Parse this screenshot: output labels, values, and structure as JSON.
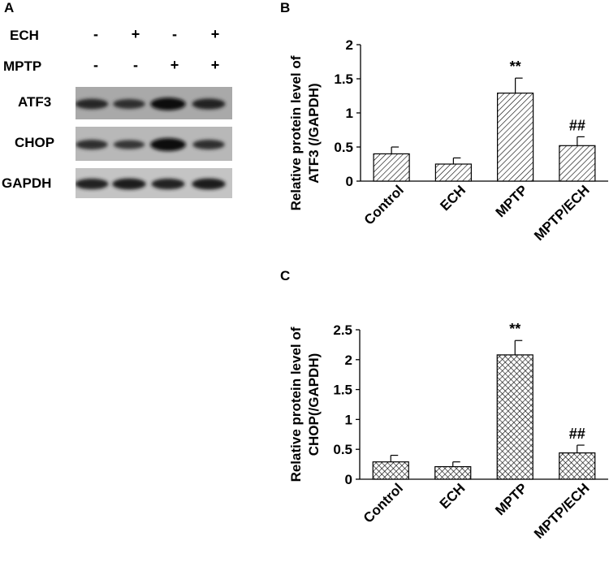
{
  "panels": {
    "a": {
      "letter": "A"
    },
    "b": {
      "letter": "B"
    },
    "c": {
      "letter": "C"
    }
  },
  "blot": {
    "rows": [
      {
        "label": "ECH",
        "signs": [
          "-",
          "+",
          "-",
          "+"
        ]
      },
      {
        "label": "MPTP",
        "signs": [
          "-",
          "-",
          "+",
          "+"
        ]
      }
    ],
    "bands": [
      {
        "label": "ATF3",
        "intensity": [
          0.65,
          0.55,
          0.95,
          0.7
        ],
        "bg": "#a9a9a9"
      },
      {
        "label": "CHOP",
        "intensity": [
          0.55,
          0.45,
          1.0,
          0.55
        ],
        "bg": "#b8b8b8"
      },
      {
        "label": "GAPDH",
        "intensity": [
          0.7,
          0.75,
          0.7,
          0.75
        ],
        "bg": "#c4c4c4"
      }
    ]
  },
  "chart_data": [
    {
      "type": "bar",
      "categories": [
        "Control",
        "ECH",
        "MPTP",
        "MPTP/ECH"
      ],
      "values": [
        0.4,
        0.25,
        1.29,
        0.52
      ],
      "errors": [
        0.1,
        0.09,
        0.22,
        0.13
      ],
      "annotations": [
        "",
        "",
        "**",
        "##"
      ],
      "ylabel_line1": "Relative protein level of",
      "ylabel_line2": "ATF3 (/GAPDH)",
      "yticks": [
        "0",
        "0.5",
        "1",
        "1.5",
        "2"
      ],
      "ylim": [
        0,
        2
      ],
      "pattern": "diagonal-hatch"
    },
    {
      "type": "bar",
      "categories": [
        "Control",
        "ECH",
        "MPTP",
        "MPTP/ECH"
      ],
      "values": [
        0.29,
        0.21,
        2.08,
        0.44
      ],
      "errors": [
        0.11,
        0.08,
        0.24,
        0.13
      ],
      "annotations": [
        "",
        "",
        "**",
        "##"
      ],
      "ylabel_line1": "Relative protein level of",
      "ylabel_line2": "CHOP(/GAPDH)",
      "yticks": [
        "0",
        "0.5",
        "1",
        "1.5",
        "2",
        "2.5"
      ],
      "ylim": [
        0,
        2.5
      ],
      "pattern": "crosshatch"
    }
  ]
}
